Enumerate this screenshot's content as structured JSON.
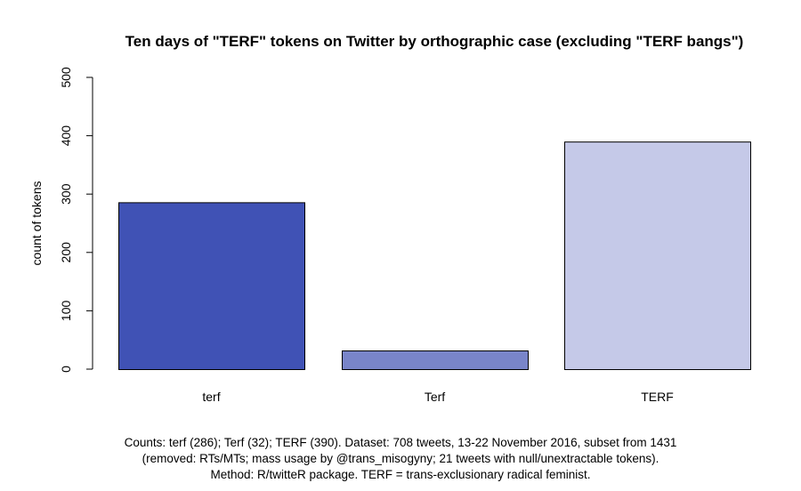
{
  "chart_data": {
    "type": "bar",
    "title": "Ten days of \"TERF\" tokens on Twitter by orthographic case (excluding \"TERF bangs\")",
    "xlabel": "",
    "ylabel": "count of tokens",
    "ylim": [
      0,
      500
    ],
    "yticks": [
      0,
      100,
      200,
      300,
      400,
      500
    ],
    "categories": [
      "terf",
      "Terf",
      "TERF"
    ],
    "values": [
      286,
      32,
      390
    ],
    "colors": [
      "#4052b5",
      "#7985c9",
      "#c5c9e8"
    ],
    "grid": false,
    "legend": "none"
  },
  "caption": {
    "lines": [
      "Counts: terf (286); Terf (32); TERF (390). Dataset: 708 tweets, 13-22 November 2016, subset from 1431",
      "(removed: RTs/MTs; mass usage by @trans_misogyny; 21 tweets with null/unextractable tokens).",
      "Method: R/twitteR package. TERF = trans-exclusionary radical feminist."
    ]
  }
}
